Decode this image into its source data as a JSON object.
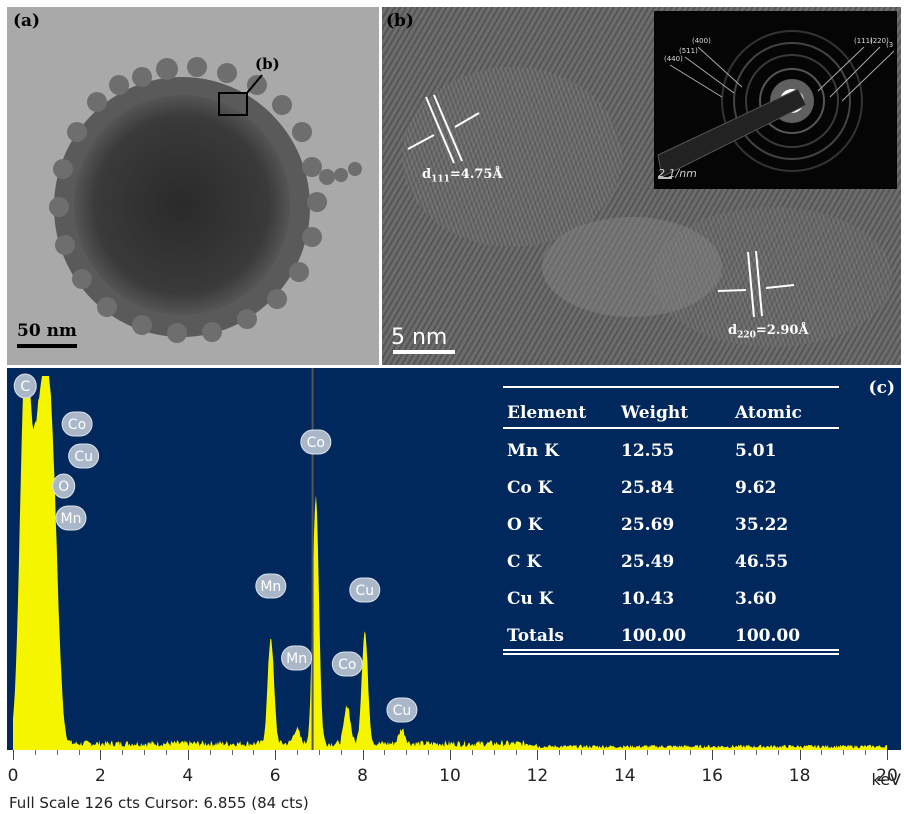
{
  "panels": {
    "a": {
      "label": "(a)",
      "scale_bar": "50 nm",
      "region_marker": "(b)"
    },
    "b": {
      "label": "(b)",
      "scale_bar": "5 nm",
      "d111_label": "d",
      "d111_sub": "111",
      "d111_value": "=4.75Å",
      "d220_label": "d",
      "d220_sub": "220",
      "d220_value": "=2.90Å",
      "saed_scale": "2 1/nm",
      "saed_rings": [
        "(440)",
        "(511)",
        "(400)",
        "(111)",
        "(220)",
        "(3"
      ]
    }
  },
  "chart_data": {
    "type": "line",
    "panel_label": "(c)",
    "xlabel": "keV",
    "xlim": [
      0,
      20
    ],
    "x_ticks": [
      "0",
      "2",
      "4",
      "6",
      "8",
      "10",
      "12",
      "14",
      "16",
      "18",
      "20"
    ],
    "ylim": [
      0,
      126
    ],
    "status_text": "Full Scale 126 cts Cursor: 6.855  (84 cts)",
    "cursor_kev": 6.855,
    "spectrum_color": "#f5f500",
    "background_color": "#00285c",
    "peaks": [
      {
        "label": "C",
        "kev": 0.28,
        "cts": 126
      },
      {
        "label": "O",
        "kev": 0.52,
        "cts": 55
      },
      {
        "label": "Mn",
        "kev": 0.64,
        "cts": 48
      },
      {
        "label": "Cu",
        "kev": 0.93,
        "cts": 62
      },
      {
        "label": "Co",
        "kev": 0.78,
        "cts": 70
      },
      {
        "label": "Mn",
        "kev": 5.9,
        "cts": 36
      },
      {
        "label": "Mn",
        "kev": 6.49,
        "cts": 5
      },
      {
        "label": "Co",
        "kev": 6.93,
        "cts": 84
      },
      {
        "label": "Co",
        "kev": 7.65,
        "cts": 13
      },
      {
        "label": "Cu",
        "kev": 8.05,
        "cts": 38
      },
      {
        "label": "Cu",
        "kev": 8.9,
        "cts": 5
      }
    ],
    "table": {
      "headers": [
        "Element",
        "Weight",
        "Atomic"
      ],
      "rows": [
        [
          "Mn K",
          "12.55",
          "5.01"
        ],
        [
          "Co K",
          "25.84",
          "9.62"
        ],
        [
          "O K",
          "25.69",
          "35.22"
        ],
        [
          "C K",
          "25.49",
          "46.55"
        ],
        [
          "Cu K",
          "10.43",
          "3.60"
        ],
        [
          "Totals",
          "100.00",
          "100.00"
        ]
      ]
    }
  }
}
